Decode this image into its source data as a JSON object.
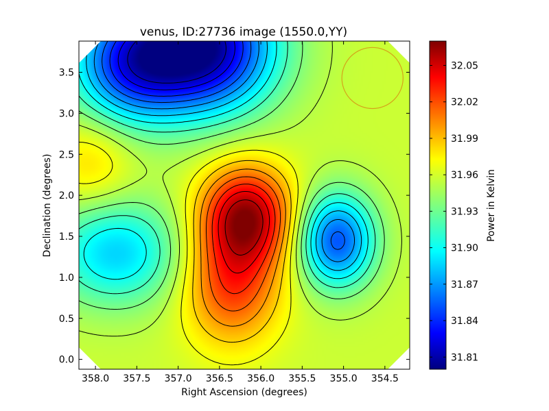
{
  "chart_data": {
    "type": "heatmap",
    "title": "venus, ID:27736 image (1550.0,YY)",
    "xlabel": "Right Ascension (degrees)",
    "ylabel": "Declination (degrees)",
    "xlim": [
      358.2,
      354.2
    ],
    "ylim": [
      -0.12,
      3.88
    ],
    "x_ticks": [
      358.0,
      357.5,
      357.0,
      356.5,
      356.0,
      355.5,
      355.0,
      354.5
    ],
    "x_tick_labels": [
      "358.0",
      "357.5",
      "357.0",
      "356.5",
      "356.0",
      "355.5",
      "355.0",
      "354.5"
    ],
    "y_ticks": [
      0.0,
      0.5,
      1.0,
      1.5,
      2.0,
      2.5,
      3.0,
      3.5
    ],
    "y_tick_labels": [
      "0.0",
      "0.5",
      "1.0",
      "1.5",
      "2.0",
      "2.5",
      "3.0",
      "3.5"
    ],
    "colorbar": {
      "label": "Power in Kelvin",
      "range": [
        31.8,
        32.07
      ],
      "ticks": [
        31.81,
        31.84,
        31.87,
        31.9,
        31.93,
        31.96,
        31.99,
        32.02,
        32.05
      ],
      "tick_labels": [
        "31.81",
        "31.84",
        "31.87",
        "31.90",
        "31.93",
        "31.96",
        "31.99",
        "32.02",
        "32.05"
      ],
      "colormap": "jet"
    },
    "background_level": 31.955,
    "features": [
      {
        "kind": "maximum",
        "ra": 356.18,
        "dec": 1.75,
        "value": 32.06,
        "sx": 0.38,
        "sy": 0.42
      },
      {
        "kind": "maximum",
        "ra": 356.35,
        "dec": 0.9,
        "value": 32.02,
        "sx": 0.4,
        "sy": 0.5
      },
      {
        "kind": "minimum",
        "ra": 356.7,
        "dec": 3.8,
        "value": 31.805,
        "sx": 0.6,
        "sy": 0.55
      },
      {
        "kind": "minimum",
        "ra": 357.6,
        "dec": 3.6,
        "value": 31.86,
        "sx": 0.5,
        "sy": 0.5
      },
      {
        "kind": "minimum",
        "ra": 355.08,
        "dec": 1.45,
        "value": 31.855,
        "sx": 0.32,
        "sy": 0.4
      },
      {
        "kind": "minimum",
        "ra": 357.75,
        "dec": 1.3,
        "value": 31.89,
        "sx": 0.55,
        "sy": 0.45
      },
      {
        "kind": "maximum",
        "ra": 358.05,
        "dec": 2.4,
        "value": 31.98,
        "sx": 0.35,
        "sy": 0.4
      }
    ],
    "annotation_circle": {
      "ra": 354.65,
      "dec": 3.43,
      "radius_deg": 0.37,
      "color": "#d4a21a"
    }
  }
}
